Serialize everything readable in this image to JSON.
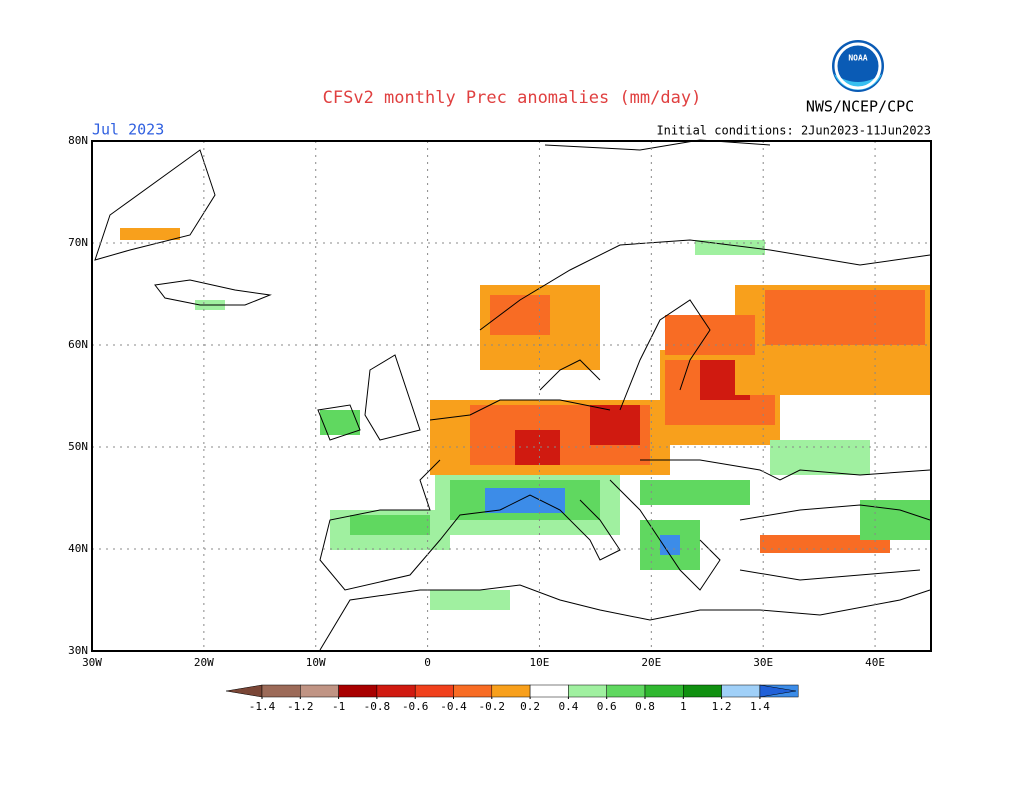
{
  "header": {
    "title": "CFSv2 monthly Prec anomalies (mm/day)",
    "month": "Jul 2023",
    "agency": "NWS/NCEP/CPC",
    "logo": "NOAA",
    "initial_conditions": "Initial conditions: 2Jun2023-11Jun2023"
  },
  "map": {
    "xlim": [
      -30,
      45
    ],
    "ylim": [
      30,
      80
    ],
    "xticks": [
      {
        "value": -30,
        "label": "30W"
      },
      {
        "value": -20,
        "label": "20W"
      },
      {
        "value": -10,
        "label": "10W"
      },
      {
        "value": 0,
        "label": "0"
      },
      {
        "value": 10,
        "label": "10E"
      },
      {
        "value": 20,
        "label": "20E"
      },
      {
        "value": 30,
        "label": "30E"
      },
      {
        "value": 40,
        "label": "40E"
      }
    ],
    "yticks": [
      {
        "value": 80,
        "label": "80N"
      },
      {
        "value": 70,
        "label": "70N"
      },
      {
        "value": 60,
        "label": "60N"
      },
      {
        "value": 50,
        "label": "50N"
      },
      {
        "value": 40,
        "label": "40N"
      },
      {
        "value": 30,
        "label": "30N"
      }
    ]
  },
  "colorbar": {
    "colors": [
      "#7a4636",
      "#9c6a58",
      "#c09484",
      "#a80000",
      "#d01a10",
      "#f0401c",
      "#f86c24",
      "#f8a01c",
      "#ffffff",
      "#a0f0a0",
      "#60d860",
      "#30b830",
      "#109010",
      "#a0d0f8",
      "#3c8ce8",
      "#2060d8"
    ],
    "ticks": [
      {
        "value": -1.4,
        "label": "-1.4"
      },
      {
        "value": -1.2,
        "label": "-1.2"
      },
      {
        "value": -1,
        "label": "-1"
      },
      {
        "value": -0.8,
        "label": "-0.8"
      },
      {
        "value": -0.6,
        "label": "-0.6"
      },
      {
        "value": -0.4,
        "label": "-0.4"
      },
      {
        "value": -0.2,
        "label": "-0.2"
      },
      {
        "value": 0.2,
        "label": "0.2"
      },
      {
        "value": 0.4,
        "label": "0.4"
      },
      {
        "value": 0.6,
        "label": "0.6"
      },
      {
        "value": 0.8,
        "label": "0.8"
      },
      {
        "value": 1,
        "label": "1"
      },
      {
        "value": 1.2,
        "label": "1.2"
      },
      {
        "value": 1.4,
        "label": "1.4"
      }
    ]
  }
}
